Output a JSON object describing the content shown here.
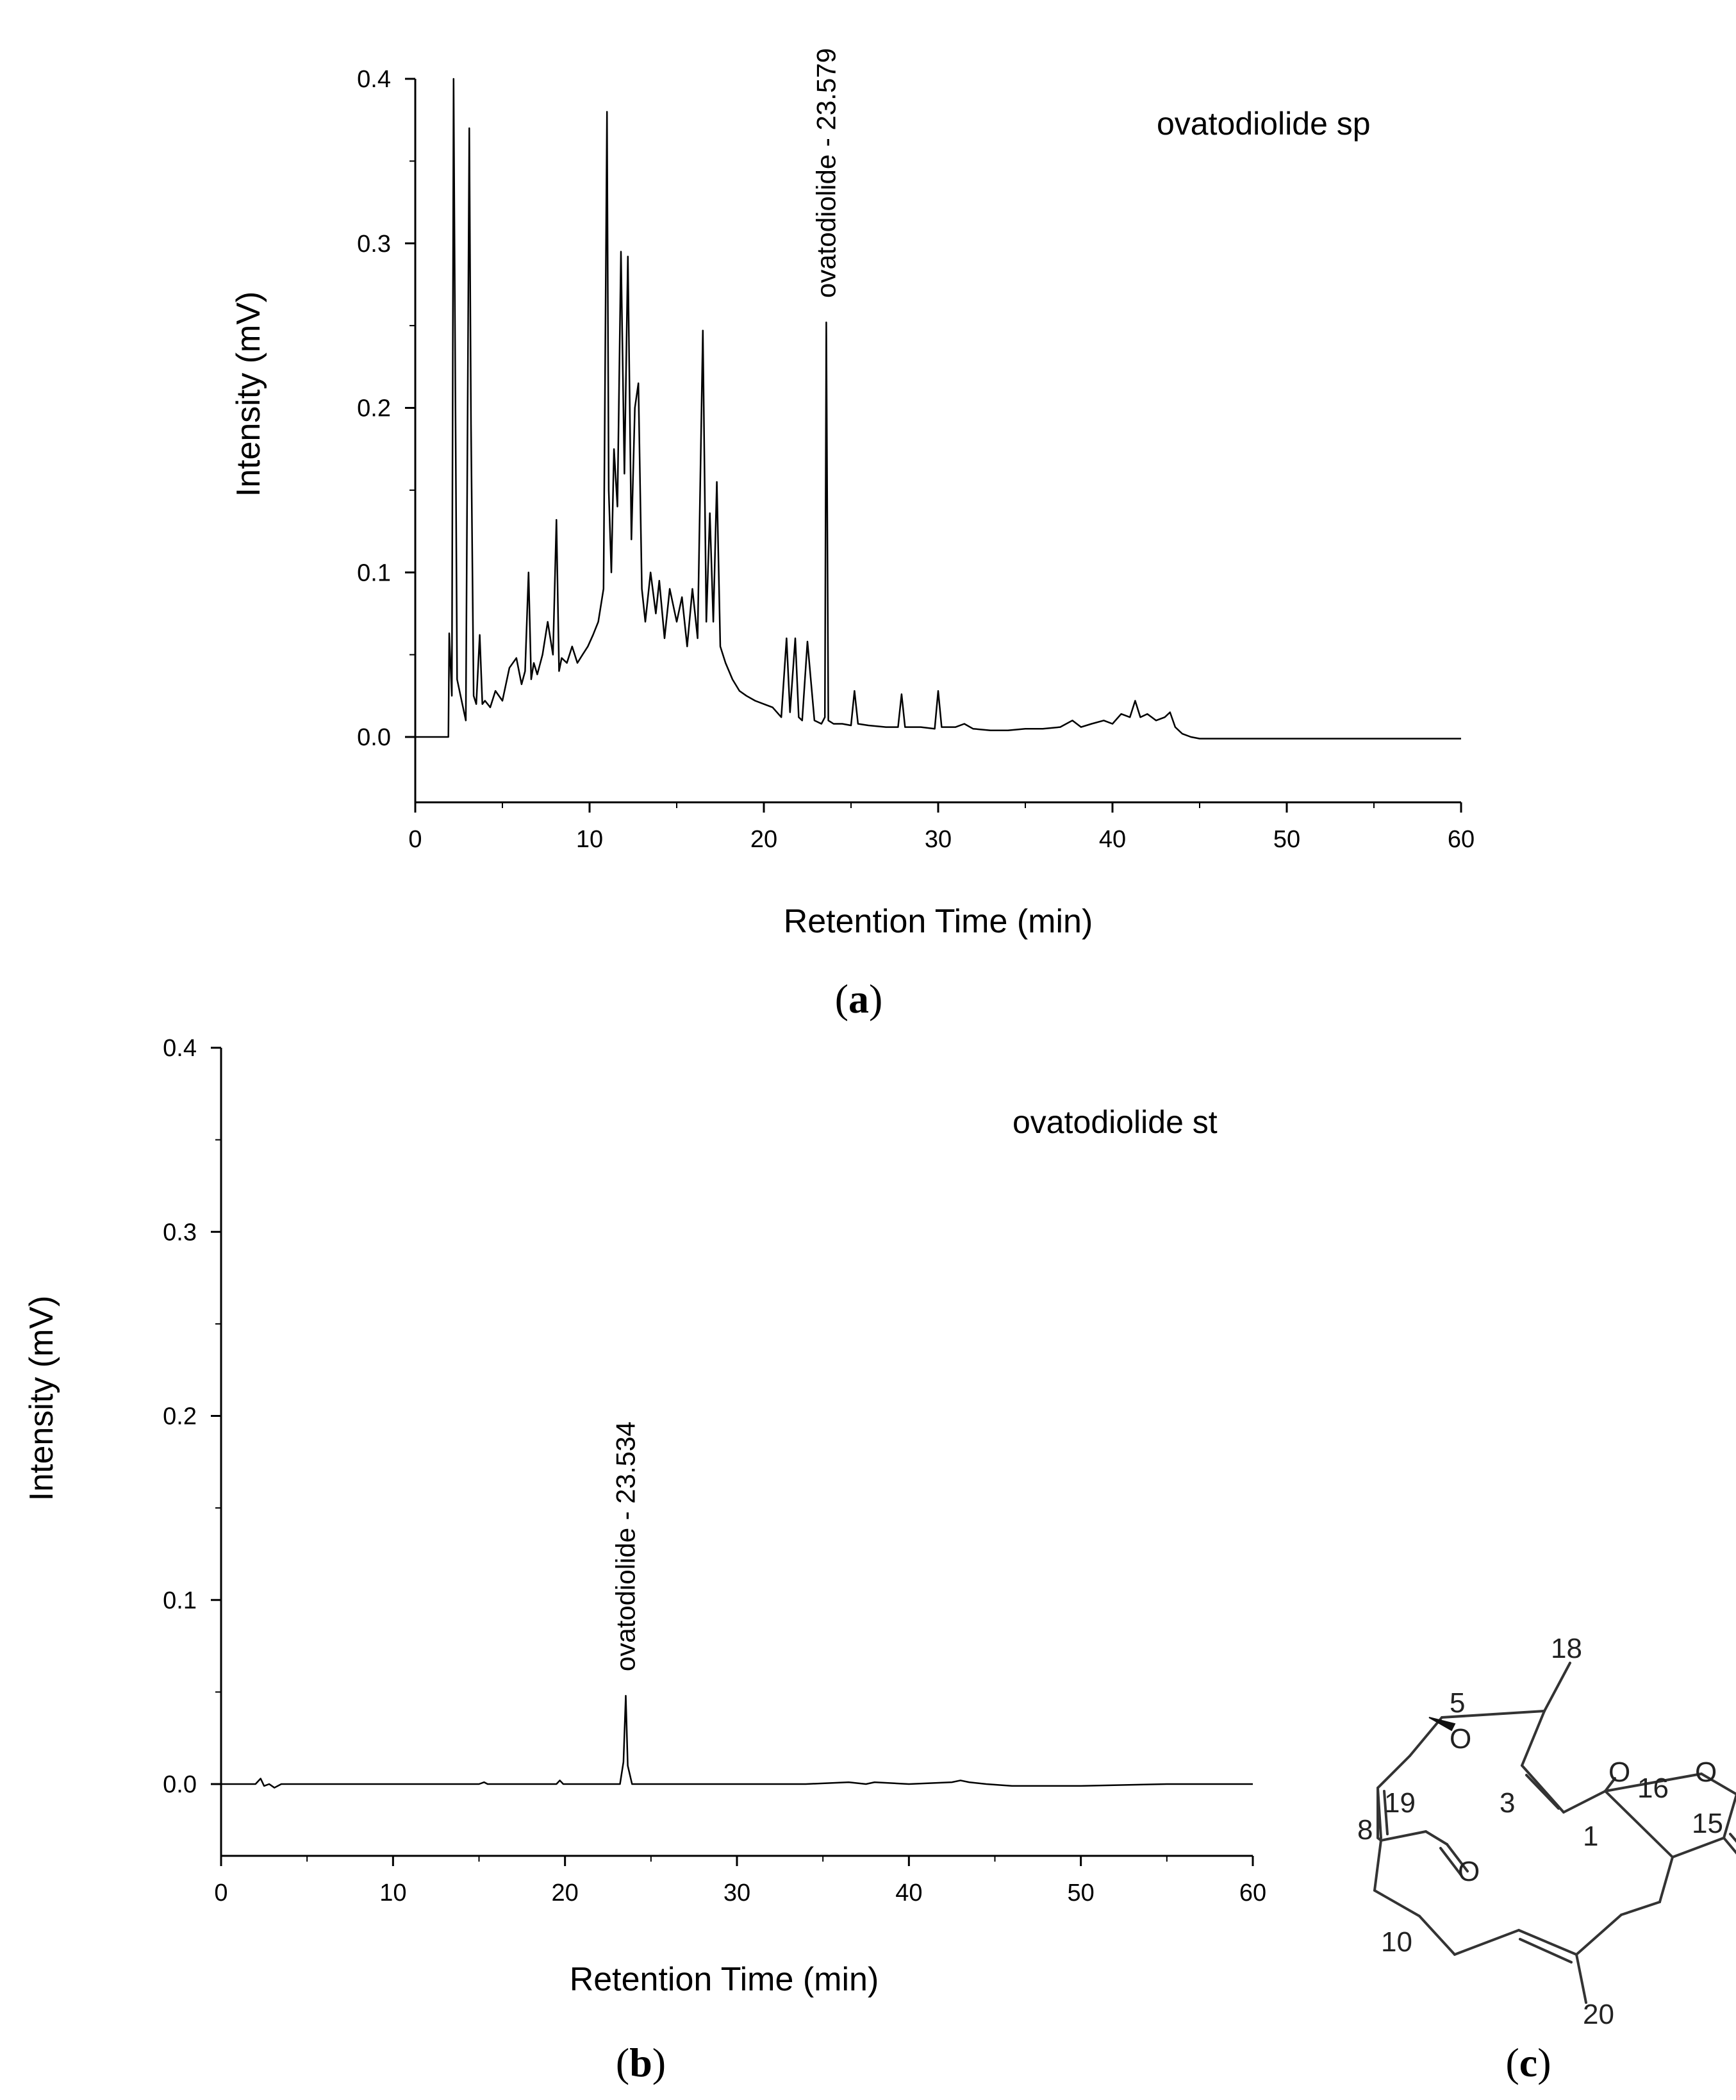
{
  "chart_data": [
    {
      "type": "line",
      "panel": "a",
      "legend": "ovatodiolide sp",
      "xlabel": "Retention Time (min)",
      "ylabel": "Intensity (mV)",
      "xlim": [
        0,
        60
      ],
      "ylim": [
        -0.04,
        0.4
      ],
      "xticks": [
        0,
        10,
        20,
        30,
        40,
        50,
        60
      ],
      "xtick_labels": [
        "0",
        "10",
        "20",
        "30",
        "40",
        "50",
        "60"
      ],
      "yticks": [
        0.0,
        0.1,
        0.2,
        0.3,
        0.4
      ],
      "ytick_labels": [
        "0.0",
        "0.1",
        "0.2",
        "0.3",
        "0.4"
      ],
      "annotation": {
        "text": "ovatodiolide - 23.579",
        "x": 23.579,
        "y": 0.252
      },
      "x": [
        0,
        1.9,
        1.95,
        2.1,
        2.2,
        2.3,
        2.4,
        2.6,
        2.9,
        3.1,
        3.2,
        3.35,
        3.5,
        3.7,
        3.85,
        4.0,
        4.3,
        4.6,
        5.0,
        5.4,
        5.8,
        6.1,
        6.3,
        6.5,
        6.65,
        6.8,
        7.0,
        7.3,
        7.6,
        7.9,
        8.1,
        8.25,
        8.4,
        8.7,
        9.0,
        9.3,
        9.6,
        9.9,
        10.2,
        10.5,
        10.8,
        11.0,
        11.1,
        11.25,
        11.4,
        11.6,
        11.8,
        12.0,
        12.2,
        12.4,
        12.6,
        12.8,
        13.0,
        13.2,
        13.5,
        13.8,
        14.0,
        14.3,
        14.6,
        15.0,
        15.3,
        15.6,
        15.9,
        16.2,
        16.5,
        16.7,
        16.9,
        17.1,
        17.3,
        17.5,
        17.8,
        18.2,
        18.6,
        19.0,
        19.5,
        20.0,
        20.5,
        21.0,
        21.3,
        21.5,
        21.8,
        22.0,
        22.2,
        22.5,
        22.9,
        23.3,
        23.5,
        23.58,
        23.7,
        24.0,
        24.5,
        25.0,
        25.2,
        25.4,
        26.0,
        27.0,
        27.7,
        27.9,
        28.1,
        29.0,
        29.8,
        30.0,
        30.2,
        31.0,
        31.5,
        32.0,
        33.0,
        34.0,
        35.0,
        36.0,
        37.0,
        37.7,
        38.2,
        38.8,
        39.5,
        40.0,
        40.5,
        41.0,
        41.3,
        41.6,
        42.0,
        42.5,
        43.0,
        43.3,
        43.6,
        44.0,
        44.5,
        45.0,
        46.0,
        48.0,
        50.0,
        55.0,
        60.0
      ],
      "y": [
        0,
        0,
        0.063,
        0.025,
        0.4,
        0.21,
        0.035,
        0.025,
        0.01,
        0.37,
        0.19,
        0.025,
        0.02,
        0.062,
        0.02,
        0.022,
        0.018,
        0.028,
        0.022,
        0.042,
        0.048,
        0.032,
        0.04,
        0.1,
        0.035,
        0.045,
        0.038,
        0.05,
        0.07,
        0.05,
        0.132,
        0.04,
        0.048,
        0.045,
        0.055,
        0.045,
        0.05,
        0.055,
        0.062,
        0.07,
        0.09,
        0.38,
        0.15,
        0.1,
        0.175,
        0.14,
        0.295,
        0.16,
        0.292,
        0.12,
        0.2,
        0.215,
        0.09,
        0.07,
        0.1,
        0.075,
        0.095,
        0.06,
        0.09,
        0.07,
        0.085,
        0.055,
        0.09,
        0.06,
        0.247,
        0.07,
        0.136,
        0.07,
        0.155,
        0.055,
        0.045,
        0.035,
        0.028,
        0.025,
        0.022,
        0.02,
        0.018,
        0.012,
        0.06,
        0.015,
        0.06,
        0.012,
        0.01,
        0.058,
        0.01,
        0.008,
        0.012,
        0.252,
        0.01,
        0.008,
        0.008,
        0.007,
        0.028,
        0.008,
        0.007,
        0.006,
        0.006,
        0.026,
        0.006,
        0.006,
        0.005,
        0.028,
        0.006,
        0.006,
        0.008,
        0.005,
        0.004,
        0.004,
        0.005,
        0.005,
        0.006,
        0.01,
        0.006,
        0.008,
        0.01,
        0.008,
        0.014,
        0.012,
        0.022,
        0.012,
        0.014,
        0.01,
        0.012,
        0.015,
        0.006,
        0.002,
        0.0,
        -0.001,
        -0.001,
        -0.001,
        -0.001,
        -0.001,
        -0.001
      ]
    },
    {
      "type": "line",
      "panel": "b",
      "legend": "ovatodiolide st",
      "xlabel": "Retention Time (min)",
      "ylabel": "Intensity (mV)",
      "xlim": [
        0,
        60
      ],
      "ylim": [
        -0.04,
        0.4
      ],
      "xticks": [
        0,
        10,
        20,
        30,
        40,
        50,
        60
      ],
      "xtick_labels": [
        "0",
        "10",
        "20",
        "30",
        "40",
        "50",
        "60"
      ],
      "yticks": [
        0.0,
        0.1,
        0.2,
        0.3,
        0.4
      ],
      "ytick_labels": [
        "0.0",
        "0.1",
        "0.2",
        "0.3",
        "0.4"
      ],
      "annotation": {
        "text": "ovatodiolide - 23.534",
        "x": 23.534,
        "y": 0.048
      },
      "x": [
        0,
        2.0,
        2.3,
        2.5,
        2.8,
        3.1,
        3.5,
        5,
        10,
        15,
        15.3,
        15.5,
        17.5,
        19.5,
        19.7,
        19.9,
        22,
        23.2,
        23.4,
        23.534,
        23.65,
        23.9,
        25,
        30,
        34,
        36.5,
        37.5,
        38,
        40,
        42.5,
        43,
        43.5,
        44.5,
        46,
        50,
        55,
        60
      ],
      "y": [
        0,
        0,
        0.003,
        -0.001,
        0.0,
        -0.002,
        0.0,
        0.0,
        0.0,
        0.0,
        0.001,
        0.0,
        0.0,
        0.0,
        0.002,
        0.0,
        0.0,
        0.0,
        0.012,
        0.048,
        0.01,
        0.0,
        0.0,
        0.0,
        0.0,
        0.001,
        0.0,
        0.001,
        0.0,
        0.001,
        0.002,
        0.001,
        0.0,
        -0.001,
        -0.001,
        0.0,
        0.0
      ]
    }
  ],
  "panel_labels": {
    "a": "a",
    "b": "b",
    "c": "c"
  },
  "structure": {
    "atom_labels": [
      "18",
      "5",
      "O",
      "O",
      "16",
      "O",
      "19",
      "3",
      "15",
      "8",
      "1",
      "O",
      "10",
      "20"
    ]
  }
}
